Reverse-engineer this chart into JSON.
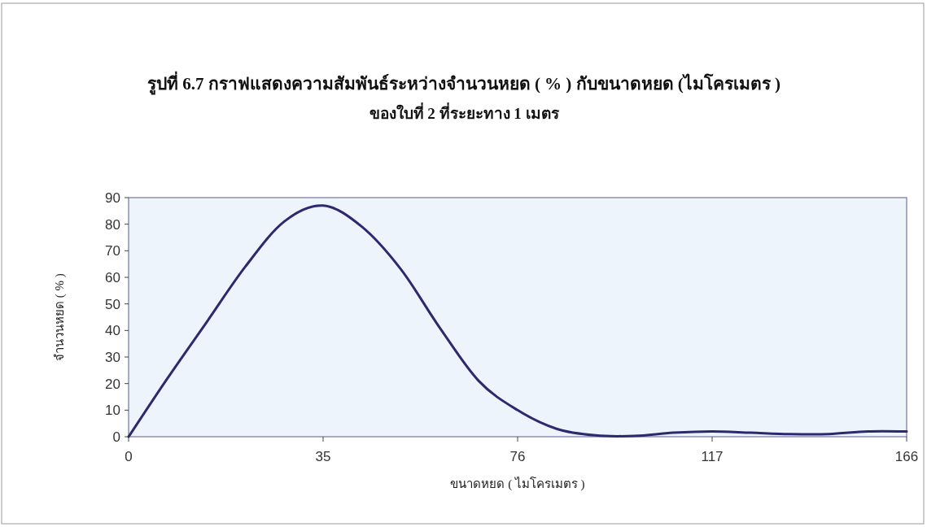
{
  "chart_data": {
    "type": "line",
    "title": "รูปที่ 6.7 กราฟแสดงความสัมพันธ์ระหว่างจำนวนหยด ( % ) กับขนาดหยด  (ไมโครเมตร )",
    "subtitle": "ของใบที่ 2 ที่ระยะทาง  1  เมตร",
    "xlabel": "ขนาดหยด ( ไมโครเมตร )",
    "ylabel": "จำนวนหยด ( % )",
    "categories": [
      "0",
      null,
      null,
      null,
      null,
      "35",
      null,
      null,
      null,
      null,
      "76",
      null,
      null,
      null,
      null,
      "117",
      null,
      null,
      null,
      null,
      "166"
    ],
    "values": [
      0,
      22,
      43,
      64,
      81,
      87,
      79,
      63,
      41,
      21,
      10,
      3,
      0.5,
      0.3,
      1.5,
      2,
      1.5,
      1,
      1,
      2,
      2
    ],
    "color": "#2b2a6e",
    "ylim": [
      0,
      90
    ],
    "yticks": [
      0,
      10,
      20,
      30,
      40,
      50,
      60,
      70,
      80,
      90
    ]
  }
}
